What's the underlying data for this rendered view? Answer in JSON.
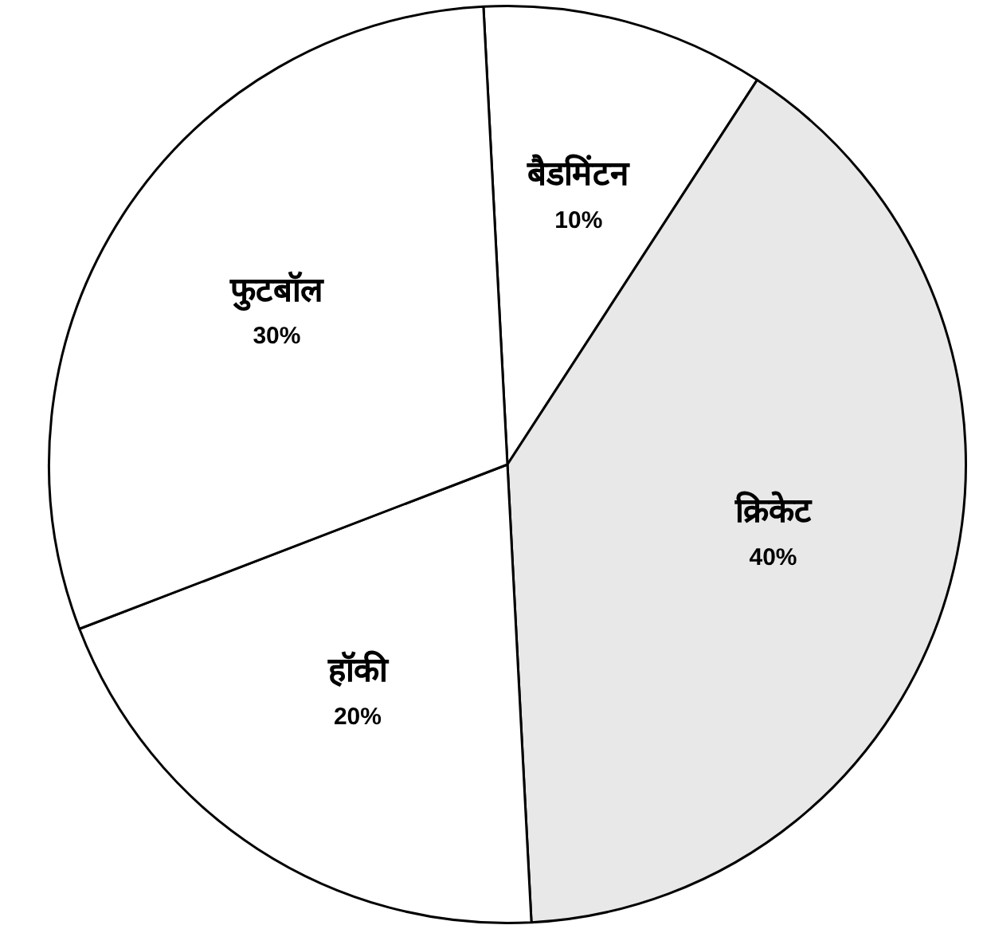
{
  "chart_data": {
    "type": "pie",
    "categories": [
      "बैडमिंटन",
      "क्रिकेट",
      "हॉकी",
      "फुटबॉल"
    ],
    "values": [
      10,
      40,
      20,
      30
    ],
    "value_labels": [
      "10%",
      "40%",
      "20%",
      "30%"
    ],
    "colors": [
      "#ffffff",
      "#e8e8e8",
      "#ffffff",
      "#ffffff"
    ],
    "legend": false
  }
}
